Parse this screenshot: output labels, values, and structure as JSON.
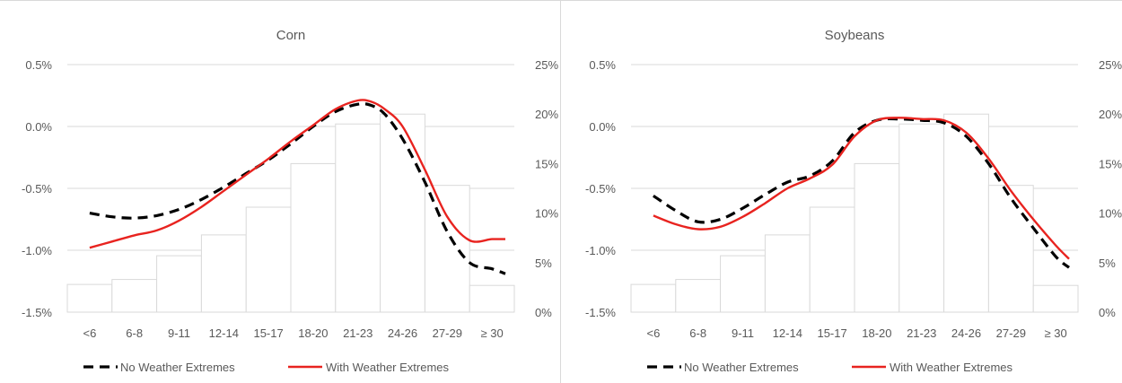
{
  "chart_data": [
    {
      "type": "bar+line",
      "title": "Corn",
      "categories": [
        "<6",
        "6-8",
        "9-11",
        "12-14",
        "15-17",
        "18-20",
        "21-23",
        "24-26",
        "27-29",
        "≥ 30"
      ],
      "left_axis": {
        "ylim": [
          -1.5,
          0.5
        ],
        "ticks": [
          "0.5%",
          "0.0%",
          "-0.5%",
          "-1.0%",
          "-1.5%"
        ],
        "tick_values": [
          0.5,
          0.0,
          -0.5,
          -1.0,
          -1.5
        ]
      },
      "right_axis": {
        "ylim": [
          0,
          25
        ],
        "ticks": [
          "25%",
          "20%",
          "15%",
          "10%",
          "5%",
          "0%"
        ],
        "tick_values": [
          25,
          20,
          15,
          10,
          5,
          0
        ]
      },
      "bars": {
        "axis": "right",
        "values": [
          2.8,
          3.3,
          5.7,
          7.8,
          10.6,
          15.0,
          19.0,
          20.0,
          12.8,
          2.7
        ]
      },
      "series": [
        {
          "name": "No Weather Extremes",
          "style": "dashed",
          "color": "#000000",
          "axis": "left",
          "x": [
            0.0,
            0.5,
            1.0,
            1.5,
            2.0,
            2.5,
            3.0,
            3.5,
            4.0,
            4.5,
            5.0,
            5.5,
            6.0,
            6.3,
            6.6,
            7.0,
            7.5,
            8.0,
            8.5,
            9.0,
            9.3
          ],
          "y": [
            -0.7,
            -0.73,
            -0.74,
            -0.72,
            -0.67,
            -0.59,
            -0.49,
            -0.38,
            -0.27,
            -0.14,
            0.0,
            0.12,
            0.18,
            0.17,
            0.1,
            -0.1,
            -0.45,
            -0.85,
            -1.1,
            -1.15,
            -1.19
          ]
        },
        {
          "name": "With Weather Extremes",
          "style": "solid",
          "color": "#e8231f",
          "axis": "left",
          "x": [
            0.0,
            0.5,
            1.0,
            1.5,
            2.0,
            2.5,
            3.0,
            3.5,
            4.0,
            4.5,
            5.0,
            5.5,
            6.0,
            6.3,
            6.6,
            7.0,
            7.5,
            8.0,
            8.5,
            9.0,
            9.3
          ],
          "y": [
            -0.98,
            -0.93,
            -0.88,
            -0.84,
            -0.76,
            -0.65,
            -0.52,
            -0.39,
            -0.26,
            -0.12,
            0.01,
            0.14,
            0.21,
            0.2,
            0.14,
            0.0,
            -0.35,
            -0.73,
            -0.92,
            -0.91,
            -0.91
          ]
        }
      ],
      "legend": {
        "position": "bottom"
      },
      "grid": "horizontal"
    },
    {
      "type": "bar+line",
      "title": "Soybeans",
      "categories": [
        "<6",
        "6-8",
        "9-11",
        "12-14",
        "15-17",
        "18-20",
        "21-23",
        "24-26",
        "27-29",
        "≥ 30"
      ],
      "left_axis": {
        "ylim": [
          -1.5,
          0.5
        ],
        "ticks": [
          "0.5%",
          "0.0%",
          "-0.5%",
          "-1.0%",
          "-1.5%"
        ],
        "tick_values": [
          0.5,
          0.0,
          -0.5,
          -1.0,
          -1.5
        ]
      },
      "right_axis": {
        "ylim": [
          0,
          25
        ],
        "ticks": [
          "25%",
          "20%",
          "15%",
          "10%",
          "5%",
          "0%"
        ],
        "tick_values": [
          25,
          20,
          15,
          10,
          5,
          0
        ]
      },
      "bars": {
        "axis": "right",
        "values": [
          2.8,
          3.3,
          5.7,
          7.8,
          10.6,
          15.0,
          19.0,
          20.0,
          12.8,
          2.7
        ]
      },
      "series": [
        {
          "name": "No Weather Extremes",
          "style": "dashed",
          "color": "#000000",
          "axis": "left",
          "x": [
            0.0,
            0.5,
            1.0,
            1.5,
            2.0,
            2.5,
            3.0,
            3.5,
            4.0,
            4.5,
            5.0,
            5.5,
            6.0,
            6.5,
            7.0,
            7.5,
            8.0,
            8.5,
            9.0,
            9.3
          ],
          "y": [
            -0.56,
            -0.68,
            -0.77,
            -0.75,
            -0.66,
            -0.55,
            -0.45,
            -0.4,
            -0.28,
            -0.05,
            0.05,
            0.06,
            0.05,
            0.03,
            -0.08,
            -0.3,
            -0.58,
            -0.82,
            -1.05,
            -1.14
          ]
        },
        {
          "name": "With Weather Extremes",
          "style": "solid",
          "color": "#e8231f",
          "axis": "left",
          "x": [
            0.0,
            0.5,
            1.0,
            1.5,
            2.0,
            2.5,
            3.0,
            3.5,
            4.0,
            4.5,
            5.0,
            5.5,
            6.0,
            6.5,
            7.0,
            7.5,
            8.0,
            8.5,
            9.0,
            9.3
          ],
          "y": [
            -0.72,
            -0.79,
            -0.83,
            -0.81,
            -0.73,
            -0.62,
            -0.5,
            -0.42,
            -0.31,
            -0.08,
            0.05,
            0.07,
            0.06,
            0.05,
            -0.05,
            -0.26,
            -0.52,
            -0.75,
            -0.96,
            -1.07
          ]
        }
      ],
      "legend": {
        "position": "bottom"
      },
      "grid": "horizontal"
    }
  ]
}
